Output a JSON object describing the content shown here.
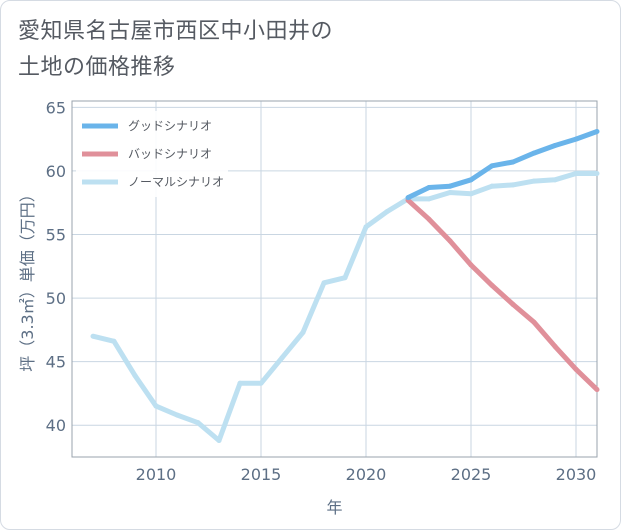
{
  "chart_data": {
    "type": "line",
    "title_lines": [
      "愛知県名古屋市西区中小田井の",
      "土地の価格推移"
    ],
    "xlabel": "年",
    "ylabel": "坪（3.3㎡）単価（万円）",
    "xlim": [
      2006,
      2031
    ],
    "ylim": [
      37.5,
      65.5
    ],
    "xticks": [
      2010,
      2015,
      2020,
      2025,
      2030
    ],
    "yticks": [
      40,
      45,
      50,
      55,
      60,
      65
    ],
    "grid": true,
    "legend_position": "top-left",
    "series": [
      {
        "name": "グッドシナリオ",
        "color": "#6ab4ea",
        "x": [
          2022,
          2023,
          2024,
          2025,
          2026,
          2027,
          2028,
          2029,
          2030,
          2031
        ],
        "y": [
          57.9,
          58.7,
          58.8,
          59.3,
          60.4,
          60.7,
          61.4,
          62.0,
          62.5,
          63.1
        ]
      },
      {
        "name": "バッドシナリオ",
        "color": "#e0909a",
        "x": [
          2022,
          2023,
          2024,
          2025,
          2026,
          2027,
          2028,
          2029,
          2030,
          2031
        ],
        "y": [
          57.7,
          56.2,
          54.5,
          52.6,
          51.0,
          49.5,
          48.1,
          46.2,
          44.4,
          42.8
        ]
      },
      {
        "name": "ノーマルシナリオ",
        "color": "#bde0f1",
        "x": [
          2007,
          2008,
          2009,
          2010,
          2011,
          2012,
          2013,
          2014,
          2015,
          2016,
          2017,
          2018,
          2019,
          2020,
          2021,
          2022,
          2023,
          2024,
          2025,
          2026,
          2027,
          2028,
          2029,
          2030,
          2031
        ],
        "y": [
          47.0,
          46.6,
          43.9,
          41.5,
          40.8,
          40.2,
          38.8,
          43.3,
          43.3,
          45.3,
          47.3,
          51.2,
          51.6,
          55.6,
          56.8,
          57.8,
          57.8,
          58.3,
          58.2,
          58.8,
          58.9,
          59.2,
          59.3,
          59.8,
          59.8
        ]
      }
    ]
  }
}
